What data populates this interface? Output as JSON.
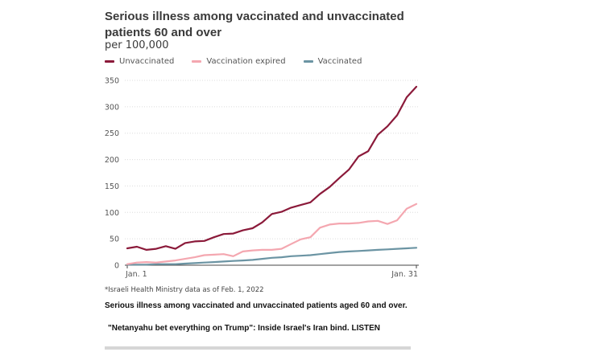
{
  "chart_data": {
    "type": "line",
    "title": "Serious illness among vaccinated and unvaccinated patients 60 and over",
    "subtitle": "per 100,000",
    "x_labels": {
      "start": "Jan. 1",
      "end": "Jan. 31"
    },
    "x": [
      1,
      2,
      3,
      4,
      5,
      6,
      7,
      8,
      9,
      10,
      11,
      12,
      13,
      14,
      15,
      16,
      17,
      18,
      19,
      20,
      21,
      22,
      23,
      24,
      25,
      26,
      27,
      28,
      29,
      30,
      31
    ],
    "ylim": [
      0,
      350
    ],
    "yticks": [
      0,
      50,
      100,
      150,
      200,
      250,
      300,
      350
    ],
    "grid": true,
    "series": [
      {
        "name": "Unvaccinated",
        "color": "#8b1a3a",
        "values": [
          32,
          35,
          29,
          31,
          36,
          31,
          42,
          45,
          46,
          53,
          59,
          60,
          66,
          70,
          81,
          97,
          101,
          109,
          114,
          119,
          135,
          148,
          165,
          181,
          206,
          216,
          247,
          263,
          284,
          318,
          338
        ]
      },
      {
        "name": "Vaccination expired",
        "color": "#f4a7b0",
        "values": [
          2,
          5,
          6,
          5,
          7,
          9,
          12,
          15,
          19,
          20,
          21,
          17,
          26,
          28,
          29,
          29,
          31,
          40,
          49,
          53,
          71,
          77,
          79,
          79,
          80,
          83,
          84,
          78,
          85,
          107,
          116
        ]
      },
      {
        "name": "Vaccinated",
        "color": "#6b94a3",
        "values": [
          1,
          1,
          1,
          2,
          2,
          2,
          3,
          4,
          5,
          6,
          7,
          8,
          9,
          10,
          12,
          14,
          15,
          17,
          18,
          19,
          21,
          23,
          25,
          26,
          27,
          28,
          29,
          30,
          31,
          32,
          33
        ]
      }
    ]
  },
  "source_note": "*Israeli Health Ministry data as of Feb. 1, 2022",
  "caption": "Serious illness among vaccinated and unvaccinated patients aged 60 and over.",
  "related_link": "\"Netanyahu bet everything on Trump\": Inside Israel's Iran bind. LISTEN"
}
